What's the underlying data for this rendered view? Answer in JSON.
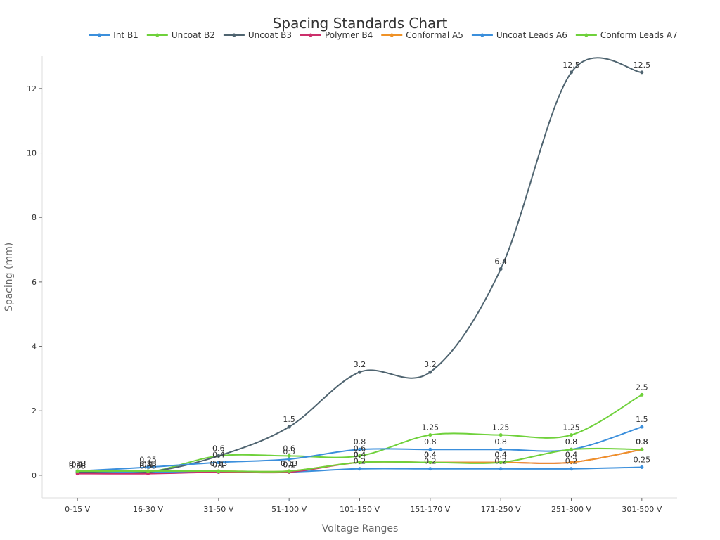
{
  "chart_data": {
    "type": "line",
    "title": "Spacing Standards Chart",
    "xlabel": "Voltage Ranges",
    "ylabel": "Spacing (mm)",
    "categories": [
      "0-15 V",
      "16-30 V",
      "31-50 V",
      "51-100 V",
      "101-150 V",
      "151-170 V",
      "171-250 V",
      "251-300 V",
      "301-500 V"
    ],
    "ylim": [
      -0.7,
      13
    ],
    "yticks": [
      0,
      2,
      4,
      6,
      8,
      10,
      12
    ],
    "grid": false,
    "legend_position": "top",
    "series": [
      {
        "name": "Int B1",
        "color": "#3b8fdc",
        "values": [
          0.1,
          0.1,
          0.1,
          0.1,
          0.2,
          0.2,
          0.2,
          0.2,
          0.25
        ]
      },
      {
        "name": "Uncoat B2",
        "color": "#6fd13b",
        "values": [
          0.1,
          0.1,
          0.6,
          0.6,
          0.6,
          1.25,
          1.25,
          1.25,
          2.5
        ]
      },
      {
        "name": "Uncoat B3",
        "color": "#4f6470",
        "values": [
          0.1,
          0.1,
          0.6,
          1.5,
          3.2,
          3.2,
          6.4,
          12.5,
          12.5
        ]
      },
      {
        "name": "Polymer B4",
        "color": "#cc2f6b",
        "values": [
          0.05,
          0.05,
          0.1,
          0.1,
          0.4,
          0.4,
          0.4,
          0.4,
          0.8
        ]
      },
      {
        "name": "Conformal A5",
        "color": "#ef9227",
        "values": [
          0.13,
          0.13,
          0.13,
          0.13,
          0.4,
          0.4,
          0.4,
          0.4,
          0.8
        ]
      },
      {
        "name": "Uncoat Leads A6",
        "color": "#3b8fdc",
        "values": [
          0.13,
          0.25,
          0.4,
          0.5,
          0.8,
          0.8,
          0.8,
          0.8,
          1.5
        ]
      },
      {
        "name": "Conform Leads A7",
        "color": "#6fd13b",
        "values": [
          0.13,
          0.13,
          0.13,
          0.13,
          0.4,
          0.4,
          0.4,
          0.8,
          0.8
        ]
      }
    ]
  }
}
